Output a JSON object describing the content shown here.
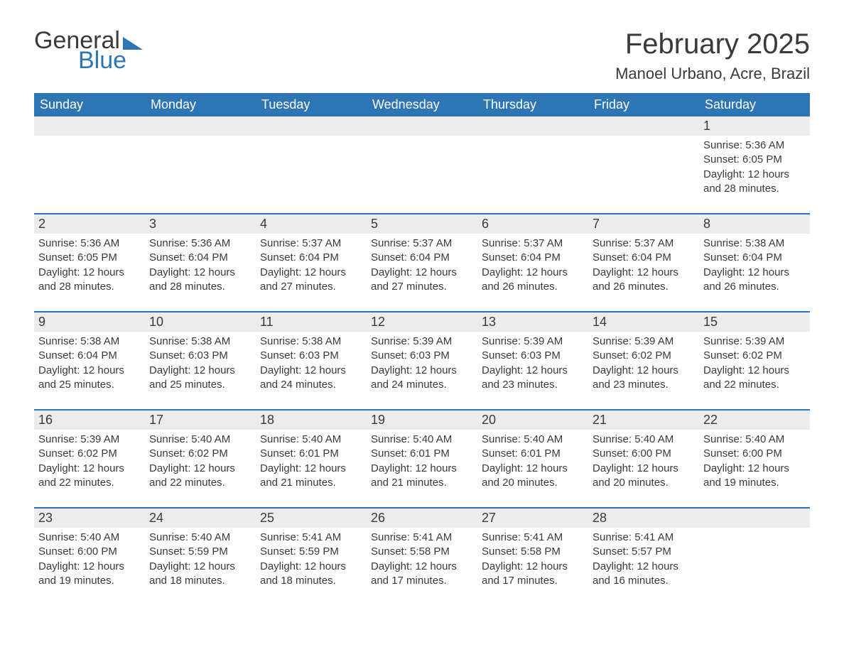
{
  "logo": {
    "text1": "General",
    "text2": "Blue"
  },
  "title": "February 2025",
  "location": "Manoel Urbano, Acre, Brazil",
  "colors": {
    "header_bg": "#2e75b6",
    "header_text": "#ffffff",
    "daynum_bg": "#ececec",
    "text": "#3a3a3a",
    "accent": "#2e75b6",
    "page_bg": "#ffffff"
  },
  "fonts": {
    "title_size": 40,
    "location_size": 22,
    "dayhdr_size": 18,
    "daynum_size": 18,
    "detail_size": 15
  },
  "day_headers": [
    "Sunday",
    "Monday",
    "Tuesday",
    "Wednesday",
    "Thursday",
    "Friday",
    "Saturday"
  ],
  "weeks": [
    [
      null,
      null,
      null,
      null,
      null,
      null,
      {
        "n": "1",
        "sr": "Sunrise: 5:36 AM",
        "ss": "Sunset: 6:05 PM",
        "d1": "Daylight: 12 hours",
        "d2": "and 28 minutes."
      }
    ],
    [
      {
        "n": "2",
        "sr": "Sunrise: 5:36 AM",
        "ss": "Sunset: 6:05 PM",
        "d1": "Daylight: 12 hours",
        "d2": "and 28 minutes."
      },
      {
        "n": "3",
        "sr": "Sunrise: 5:36 AM",
        "ss": "Sunset: 6:04 PM",
        "d1": "Daylight: 12 hours",
        "d2": "and 28 minutes."
      },
      {
        "n": "4",
        "sr": "Sunrise: 5:37 AM",
        "ss": "Sunset: 6:04 PM",
        "d1": "Daylight: 12 hours",
        "d2": "and 27 minutes."
      },
      {
        "n": "5",
        "sr": "Sunrise: 5:37 AM",
        "ss": "Sunset: 6:04 PM",
        "d1": "Daylight: 12 hours",
        "d2": "and 27 minutes."
      },
      {
        "n": "6",
        "sr": "Sunrise: 5:37 AM",
        "ss": "Sunset: 6:04 PM",
        "d1": "Daylight: 12 hours",
        "d2": "and 26 minutes."
      },
      {
        "n": "7",
        "sr": "Sunrise: 5:37 AM",
        "ss": "Sunset: 6:04 PM",
        "d1": "Daylight: 12 hours",
        "d2": "and 26 minutes."
      },
      {
        "n": "8",
        "sr": "Sunrise: 5:38 AM",
        "ss": "Sunset: 6:04 PM",
        "d1": "Daylight: 12 hours",
        "d2": "and 26 minutes."
      }
    ],
    [
      {
        "n": "9",
        "sr": "Sunrise: 5:38 AM",
        "ss": "Sunset: 6:04 PM",
        "d1": "Daylight: 12 hours",
        "d2": "and 25 minutes."
      },
      {
        "n": "10",
        "sr": "Sunrise: 5:38 AM",
        "ss": "Sunset: 6:03 PM",
        "d1": "Daylight: 12 hours",
        "d2": "and 25 minutes."
      },
      {
        "n": "11",
        "sr": "Sunrise: 5:38 AM",
        "ss": "Sunset: 6:03 PM",
        "d1": "Daylight: 12 hours",
        "d2": "and 24 minutes."
      },
      {
        "n": "12",
        "sr": "Sunrise: 5:39 AM",
        "ss": "Sunset: 6:03 PM",
        "d1": "Daylight: 12 hours",
        "d2": "and 24 minutes."
      },
      {
        "n": "13",
        "sr": "Sunrise: 5:39 AM",
        "ss": "Sunset: 6:03 PM",
        "d1": "Daylight: 12 hours",
        "d2": "and 23 minutes."
      },
      {
        "n": "14",
        "sr": "Sunrise: 5:39 AM",
        "ss": "Sunset: 6:02 PM",
        "d1": "Daylight: 12 hours",
        "d2": "and 23 minutes."
      },
      {
        "n": "15",
        "sr": "Sunrise: 5:39 AM",
        "ss": "Sunset: 6:02 PM",
        "d1": "Daylight: 12 hours",
        "d2": "and 22 minutes."
      }
    ],
    [
      {
        "n": "16",
        "sr": "Sunrise: 5:39 AM",
        "ss": "Sunset: 6:02 PM",
        "d1": "Daylight: 12 hours",
        "d2": "and 22 minutes."
      },
      {
        "n": "17",
        "sr": "Sunrise: 5:40 AM",
        "ss": "Sunset: 6:02 PM",
        "d1": "Daylight: 12 hours",
        "d2": "and 22 minutes."
      },
      {
        "n": "18",
        "sr": "Sunrise: 5:40 AM",
        "ss": "Sunset: 6:01 PM",
        "d1": "Daylight: 12 hours",
        "d2": "and 21 minutes."
      },
      {
        "n": "19",
        "sr": "Sunrise: 5:40 AM",
        "ss": "Sunset: 6:01 PM",
        "d1": "Daylight: 12 hours",
        "d2": "and 21 minutes."
      },
      {
        "n": "20",
        "sr": "Sunrise: 5:40 AM",
        "ss": "Sunset: 6:01 PM",
        "d1": "Daylight: 12 hours",
        "d2": "and 20 minutes."
      },
      {
        "n": "21",
        "sr": "Sunrise: 5:40 AM",
        "ss": "Sunset: 6:00 PM",
        "d1": "Daylight: 12 hours",
        "d2": "and 20 minutes."
      },
      {
        "n": "22",
        "sr": "Sunrise: 5:40 AM",
        "ss": "Sunset: 6:00 PM",
        "d1": "Daylight: 12 hours",
        "d2": "and 19 minutes."
      }
    ],
    [
      {
        "n": "23",
        "sr": "Sunrise: 5:40 AM",
        "ss": "Sunset: 6:00 PM",
        "d1": "Daylight: 12 hours",
        "d2": "and 19 minutes."
      },
      {
        "n": "24",
        "sr": "Sunrise: 5:40 AM",
        "ss": "Sunset: 5:59 PM",
        "d1": "Daylight: 12 hours",
        "d2": "and 18 minutes."
      },
      {
        "n": "25",
        "sr": "Sunrise: 5:41 AM",
        "ss": "Sunset: 5:59 PM",
        "d1": "Daylight: 12 hours",
        "d2": "and 18 minutes."
      },
      {
        "n": "26",
        "sr": "Sunrise: 5:41 AM",
        "ss": "Sunset: 5:58 PM",
        "d1": "Daylight: 12 hours",
        "d2": "and 17 minutes."
      },
      {
        "n": "27",
        "sr": "Sunrise: 5:41 AM",
        "ss": "Sunset: 5:58 PM",
        "d1": "Daylight: 12 hours",
        "d2": "and 17 minutes."
      },
      {
        "n": "28",
        "sr": "Sunrise: 5:41 AM",
        "ss": "Sunset: 5:57 PM",
        "d1": "Daylight: 12 hours",
        "d2": "and 16 minutes."
      },
      null
    ]
  ]
}
